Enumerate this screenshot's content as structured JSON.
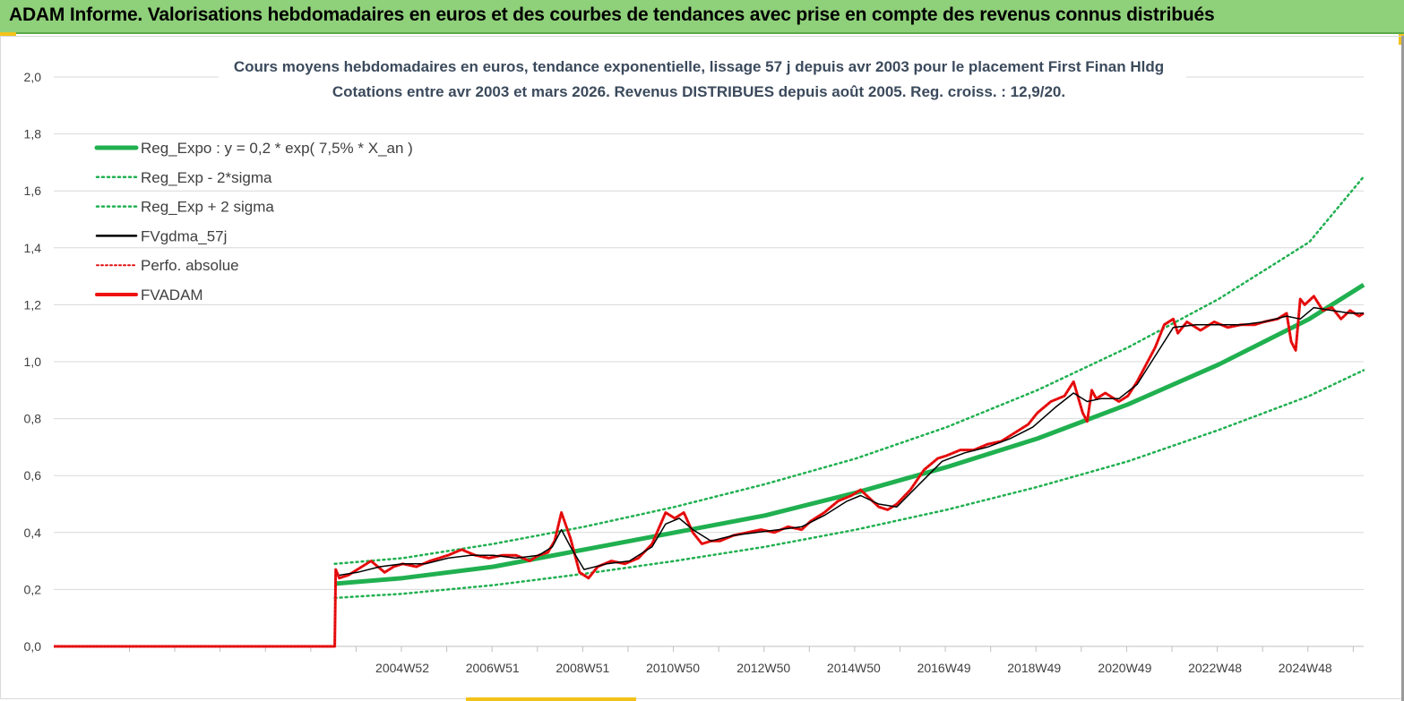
{
  "banner": {
    "title": "ADAM Informe. Valorisations hebdomadaires en euros et des courbes de tendances avec prise en compte des revenus connus distribués"
  },
  "colors": {
    "banner_bg": "#8fd07a",
    "accent": "#f2c21a",
    "reg_green": "#20b050",
    "band_green": "#20b050",
    "fvgdma": "#000000",
    "perfo": "#e01010",
    "fvadam": "#ee1111"
  },
  "chart_data": {
    "type": "line",
    "title": "Cours moyens hebdomadaires en euros, tendance exponentielle, lissage 57 j depuis avr 2003 pour le placement First Finan Hldg",
    "subtitle": "Cotations entre avr 2003 et mars 2026. Revenus DISTRIBUES depuis août 2005. Reg. croiss. : 12,9/20.",
    "xlabel": "",
    "ylabel": "",
    "ylim": [
      0,
      2.0
    ],
    "yticks": [
      "0,0",
      "0,2",
      "0,4",
      "0,6",
      "0,8",
      "1,0",
      "1,2",
      "1,4",
      "1,6",
      "1,8",
      "2,0"
    ],
    "xlim": [
      1997.3,
      2026.2
    ],
    "xticks": [
      {
        "label": "2004W52",
        "x": 2004.99
      },
      {
        "label": "2006W51",
        "x": 2006.98
      },
      {
        "label": "2008W51",
        "x": 2008.97
      },
      {
        "label": "2010W50",
        "x": 2010.96
      },
      {
        "label": "2012W50",
        "x": 2012.96
      },
      {
        "label": "2014W50",
        "x": 2014.95
      },
      {
        "label": "2016W49",
        "x": 2016.94
      },
      {
        "label": "2018W49",
        "x": 2018.93
      },
      {
        "label": "2020W49",
        "x": 2020.93
      },
      {
        "label": "2022W48",
        "x": 2022.92
      },
      {
        "label": "2024W48",
        "x": 2024.91
      }
    ],
    "grid": "horizontal",
    "legend_position": "top-left",
    "legend": [
      {
        "name": "Reg_Expo : y = 0,2 * exp( 7,5% *  X_an )",
        "style": "thick"
      },
      {
        "name": "Reg_Exp - 2*sigma",
        "style": "dotted"
      },
      {
        "name": "Reg_Exp + 2 sigma",
        "style": "dotted"
      },
      {
        "name": "FVgdma_57j",
        "style": "solid"
      },
      {
        "name": "Perfo. absolue",
        "style": "dotted"
      },
      {
        "name": "FVADAM",
        "style": "thick"
      }
    ],
    "regression": {
      "x": [
        2003.5,
        2005,
        2007,
        2009,
        2011,
        2013,
        2015,
        2017,
        2019,
        2021,
        2023,
        2025,
        2026.2
      ],
      "center": [
        0.22,
        0.24,
        0.28,
        0.34,
        0.4,
        0.46,
        0.54,
        0.63,
        0.73,
        0.85,
        0.99,
        1.15,
        1.27
      ],
      "lower": [
        0.17,
        0.185,
        0.215,
        0.255,
        0.3,
        0.35,
        0.41,
        0.48,
        0.56,
        0.65,
        0.76,
        0.88,
        0.97
      ],
      "upper": [
        0.29,
        0.31,
        0.36,
        0.42,
        0.49,
        0.57,
        0.66,
        0.77,
        0.9,
        1.05,
        1.22,
        1.42,
        1.65
      ]
    },
    "fvadam": {
      "x": [
        1997.3,
        2003.5,
        2003.52,
        2003.6,
        2003.8,
        2004.0,
        2004.3,
        2004.6,
        2004.8,
        2005.0,
        2005.3,
        2005.6,
        2005.8,
        2006.0,
        2006.3,
        2006.6,
        2006.9,
        2007.2,
        2007.5,
        2007.8,
        2008.0,
        2008.2,
        2008.35,
        2008.5,
        2008.7,
        2008.9,
        2009.1,
        2009.3,
        2009.6,
        2009.9,
        2010.2,
        2010.5,
        2010.8,
        2011.0,
        2011.2,
        2011.4,
        2011.6,
        2011.8,
        2012.0,
        2012.3,
        2012.6,
        2012.9,
        2013.2,
        2013.5,
        2013.8,
        2014.0,
        2014.3,
        2014.6,
        2014.9,
        2015.1,
        2015.3,
        2015.5,
        2015.7,
        2015.9,
        2016.2,
        2016.5,
        2016.8,
        2017.0,
        2017.3,
        2017.6,
        2017.9,
        2018.2,
        2018.5,
        2018.8,
        2019.0,
        2019.3,
        2019.6,
        2019.8,
        2020.0,
        2020.1,
        2020.2,
        2020.3,
        2020.5,
        2020.8,
        2021.0,
        2021.2,
        2021.4,
        2021.6,
        2021.8,
        2022.0,
        2022.1,
        2022.3,
        2022.6,
        2022.9,
        2023.2,
        2023.5,
        2023.8,
        2024.0,
        2024.3,
        2024.5,
        2024.6,
        2024.7,
        2024.8,
        2024.9,
        2025.1,
        2025.3,
        2025.5,
        2025.7,
        2025.9,
        2026.1,
        2026.2
      ],
      "y": [
        0.0,
        0.0,
        0.27,
        0.24,
        0.25,
        0.27,
        0.3,
        0.26,
        0.28,
        0.29,
        0.28,
        0.3,
        0.31,
        0.32,
        0.34,
        0.32,
        0.31,
        0.32,
        0.32,
        0.3,
        0.32,
        0.33,
        0.37,
        0.47,
        0.38,
        0.26,
        0.24,
        0.28,
        0.3,
        0.29,
        0.31,
        0.36,
        0.47,
        0.45,
        0.47,
        0.4,
        0.36,
        0.37,
        0.37,
        0.39,
        0.4,
        0.41,
        0.4,
        0.42,
        0.41,
        0.44,
        0.47,
        0.51,
        0.53,
        0.55,
        0.52,
        0.49,
        0.48,
        0.5,
        0.55,
        0.62,
        0.66,
        0.67,
        0.69,
        0.69,
        0.71,
        0.72,
        0.75,
        0.78,
        0.82,
        0.86,
        0.88,
        0.93,
        0.82,
        0.79,
        0.9,
        0.87,
        0.89,
        0.86,
        0.88,
        0.93,
        0.99,
        1.05,
        1.13,
        1.15,
        1.1,
        1.14,
        1.11,
        1.14,
        1.12,
        1.13,
        1.13,
        1.14,
        1.15,
        1.17,
        1.07,
        1.04,
        1.22,
        1.2,
        1.23,
        1.18,
        1.19,
        1.15,
        1.18,
        1.16,
        1.17
      ]
    },
    "fvgdma": {
      "x": [
        2003.6,
        2004.0,
        2004.5,
        2005.0,
        2005.5,
        2006.0,
        2006.5,
        2007.0,
        2007.5,
        2008.0,
        2008.3,
        2008.5,
        2008.7,
        2009.0,
        2009.5,
        2010.0,
        2010.5,
        2010.8,
        2011.1,
        2011.4,
        2011.8,
        2012.3,
        2012.8,
        2013.3,
        2013.8,
        2014.3,
        2014.8,
        2015.1,
        2015.5,
        2015.9,
        2016.4,
        2016.9,
        2017.4,
        2017.9,
        2018.4,
        2018.9,
        2019.4,
        2019.8,
        2020.1,
        2020.4,
        2020.8,
        2021.2,
        2021.6,
        2022.0,
        2022.5,
        2023.0,
        2023.5,
        2024.0,
        2024.5,
        2024.8,
        2025.1,
        2025.5,
        2025.9,
        2026.2
      ],
      "y": [
        0.25,
        0.26,
        0.28,
        0.29,
        0.29,
        0.31,
        0.32,
        0.32,
        0.31,
        0.32,
        0.35,
        0.41,
        0.35,
        0.27,
        0.29,
        0.3,
        0.35,
        0.43,
        0.45,
        0.41,
        0.37,
        0.39,
        0.4,
        0.41,
        0.42,
        0.46,
        0.51,
        0.53,
        0.5,
        0.49,
        0.57,
        0.65,
        0.68,
        0.7,
        0.73,
        0.77,
        0.84,
        0.89,
        0.86,
        0.87,
        0.87,
        0.92,
        1.02,
        1.12,
        1.13,
        1.13,
        1.13,
        1.14,
        1.16,
        1.15,
        1.19,
        1.18,
        1.17,
        1.17
      ]
    }
  }
}
